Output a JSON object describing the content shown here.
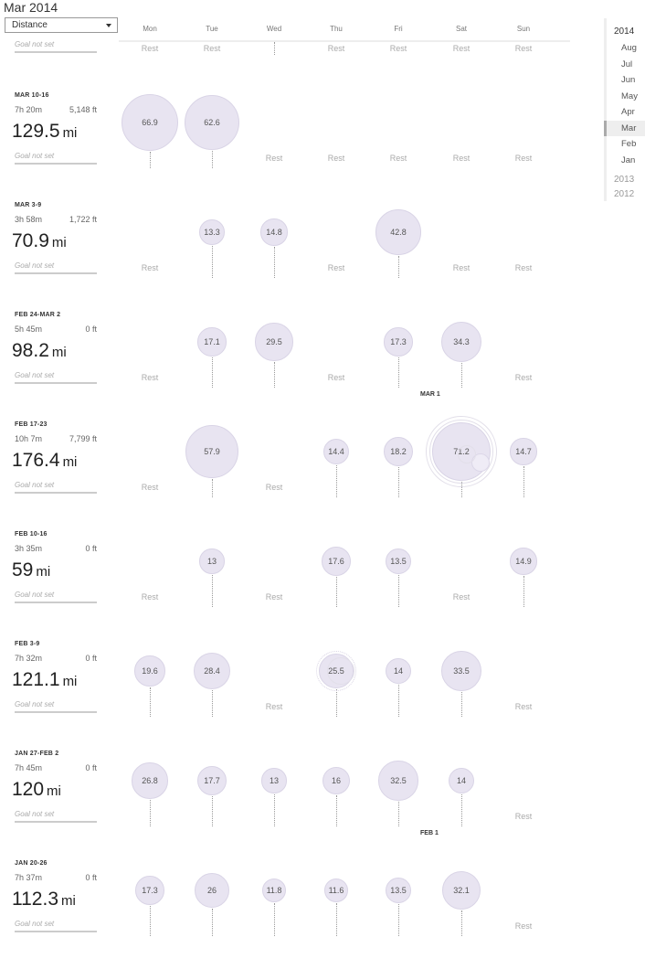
{
  "header": {
    "title": "Mar 2014",
    "metric_selected": "Distance"
  },
  "days": [
    "Mon",
    "Tue",
    "Wed",
    "Thu",
    "Fri",
    "Sat",
    "Sun"
  ],
  "rest_label": "Rest",
  "top_partial": {
    "goal": "Goal not set",
    "rest_days": [
      0,
      1,
      3,
      4,
      5,
      6
    ]
  },
  "weeks": [
    {
      "title": "MAR 10-16",
      "time": "7h 20m",
      "elevation": "5,148 ft",
      "distance": "129.5",
      "unit": "mi",
      "goal": "Goal not set",
      "days": [
        {
          "v": "66.9"
        },
        {
          "v": "62.6"
        },
        {
          "rest": true
        },
        {
          "rest": true
        },
        {
          "rest": true
        },
        {
          "rest": true
        },
        {
          "rest": true
        }
      ]
    },
    {
      "title": "MAR 3-9",
      "time": "3h 58m",
      "elevation": "1,722 ft",
      "distance": "70.9",
      "unit": "mi",
      "goal": "Goal not set",
      "days": [
        {
          "rest": true
        },
        {
          "v": "13.3"
        },
        {
          "v": "14.8"
        },
        {
          "rest": true
        },
        {
          "v": "42.8"
        },
        {
          "rest": true
        },
        {
          "rest": true
        }
      ]
    },
    {
      "title": "FEB 24-MAR 2",
      "time": "5h 45m",
      "elevation": "0 ft",
      "distance": "98.2",
      "unit": "mi",
      "goal": "Goal not set",
      "days": [
        {
          "rest": true
        },
        {
          "v": "17.1"
        },
        {
          "v": "29.5"
        },
        {
          "rest": true
        },
        {
          "v": "17.3"
        },
        {
          "v": "34.3"
        },
        {
          "rest": true
        }
      ],
      "month_marker": {
        "label": "MAR 1"
      }
    },
    {
      "title": "FEB 17-23",
      "time": "10h 7m",
      "elevation": "7,799 ft",
      "distance": "176.4",
      "unit": "mi",
      "goal": "Goal not set",
      "days": [
        {
          "rest": true
        },
        {
          "v": "57.9"
        },
        {
          "rest": true
        },
        {
          "v": "14.4"
        },
        {
          "v": "18.2"
        },
        {
          "v": "71.2",
          "multi": true
        },
        {
          "v": "14.7"
        }
      ]
    },
    {
      "title": "FEB 10-16",
      "time": "3h 35m",
      "elevation": "0 ft",
      "distance": "59",
      "unit": "mi",
      "goal": "Goal not set",
      "days": [
        {
          "rest": true
        },
        {
          "v": "13"
        },
        {
          "rest": true
        },
        {
          "v": "17.6"
        },
        {
          "v": "13.5"
        },
        {
          "rest": true
        },
        {
          "v": "14.9"
        }
      ]
    },
    {
      "title": "FEB 3-9",
      "time": "7h 32m",
      "elevation": "0 ft",
      "distance": "121.1",
      "unit": "mi",
      "goal": "Goal not set",
      "days": [
        {
          "v": "19.6"
        },
        {
          "v": "28.4"
        },
        {
          "rest": true
        },
        {
          "v": "25.5",
          "multi": true
        },
        {
          "v": "14"
        },
        {
          "v": "33.5"
        },
        {
          "rest": true
        }
      ]
    },
    {
      "title": "JAN 27-FEB 2",
      "time": "7h 45m",
      "elevation": "0 ft",
      "distance": "120",
      "unit": "mi",
      "goal": "Goal not set",
      "days": [
        {
          "v": "26.8"
        },
        {
          "v": "17.7"
        },
        {
          "v": "13"
        },
        {
          "v": "16"
        },
        {
          "v": "32.5"
        },
        {
          "v": "14"
        },
        {
          "rest": true
        }
      ],
      "month_marker": {
        "label": "FEB 1"
      }
    },
    {
      "title": "JAN 20-26",
      "time": "7h 37m",
      "elevation": "0 ft",
      "distance": "112.3",
      "unit": "mi",
      "goal": "Goal not set",
      "days": [
        {
          "v": "17.3"
        },
        {
          "v": "26"
        },
        {
          "v": "11.8"
        },
        {
          "v": "11.6"
        },
        {
          "v": "13.5"
        },
        {
          "v": "32.1"
        },
        {
          "rest": true
        }
      ]
    }
  ],
  "timeline": {
    "year_current": "2014",
    "months": [
      "Aug",
      "Jul",
      "Jun",
      "May",
      "Apr",
      "Mar",
      "Feb",
      "Jan"
    ],
    "active_month": "Mar",
    "past_years": [
      "2013",
      "2012"
    ]
  },
  "colors": {
    "bubble_fill": "#e8e4f1",
    "bubble_border": "#d9d4e6",
    "rest_text": "#aaaaaa"
  }
}
